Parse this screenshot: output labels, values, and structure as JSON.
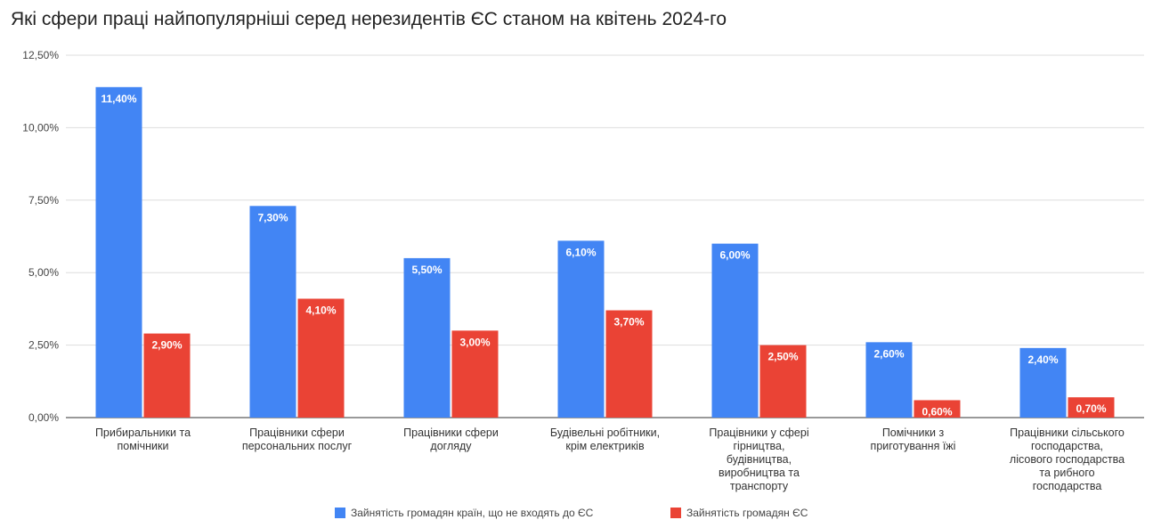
{
  "chart_data": {
    "type": "bar",
    "title": "Які сфери праці найпопулярніші серед нерезидентів ЄС станом на квітень 2024-го",
    "categories": [
      [
        "Прибиральники та",
        "помічники"
      ],
      [
        "Працівники сфери",
        "персональних послуг"
      ],
      [
        "Працівники сфери",
        "догляду"
      ],
      [
        "Будівельні робітники,",
        "крім електриків"
      ],
      [
        "Працівники у сфері",
        "гірництва,",
        "будівництва,",
        "виробництва та",
        "транспорту"
      ],
      [
        "Помічники з",
        "приготування їжі"
      ],
      [
        "Працівники сільського",
        "господарства,",
        "лісового господарства",
        "та рибного",
        "господарства"
      ]
    ],
    "series": [
      {
        "name": "Зайнятість громадян країн, що не входять до ЄС",
        "color": "#4285f4",
        "values": [
          11.4,
          7.3,
          5.5,
          6.1,
          6.0,
          2.6,
          2.4
        ],
        "labels": [
          "11,40%",
          "7,30%",
          "5,50%",
          "6,10%",
          "6,00%",
          "2,60%",
          "2,40%"
        ]
      },
      {
        "name": "Зайнятість громадян ЄС",
        "color": "#ea4335",
        "values": [
          2.9,
          4.1,
          3.0,
          3.7,
          2.5,
          0.6,
          0.7
        ],
        "labels": [
          "2,90%",
          "4,10%",
          "3,00%",
          "3,70%",
          "2,50%",
          "0,60%",
          "0,70%"
        ]
      }
    ],
    "ylim": [
      0,
      12.5
    ],
    "yticks": [
      {
        "value": 0,
        "label": "0,00%"
      },
      {
        "value": 2.5,
        "label": "2,50%"
      },
      {
        "value": 5,
        "label": "5,00%"
      },
      {
        "value": 7.5,
        "label": "7,50%"
      },
      {
        "value": 10,
        "label": "10,00%"
      },
      {
        "value": 12.5,
        "label": "12,50%"
      }
    ],
    "grid": true,
    "legend_position": "bottom"
  }
}
